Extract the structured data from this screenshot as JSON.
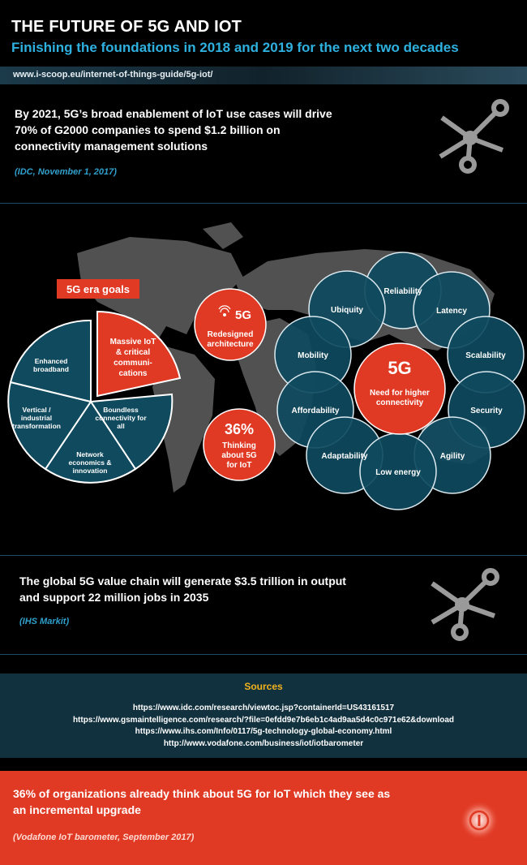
{
  "header": {
    "title": "THE FUTURE OF 5G AND IOT",
    "subtitle": "Finishing the foundations in 2018 and 2019 for the next two decades",
    "url": "www.i-scoop.eu/internet-of-things-guide/5g-iot/"
  },
  "stat_top": {
    "text": "By 2021, 5G’s broad enablement of IoT use cases will drive 70% of G2000 companies to spend $1.2 billion on connectivity management solutions",
    "source": "(IDC, November 1, 2017)"
  },
  "goals": {
    "title": "5G era goals",
    "segments": [
      {
        "label": "Massive IoT\n& critical\ncommuni-\ncations"
      },
      {
        "label": "Boundless\nconnectivity for\nall"
      },
      {
        "label": "Network\neconomics &\ninnovation"
      },
      {
        "label": "Vertical /\nindustrial\ntransformation"
      },
      {
        "label": "Enhanced\nbroadband"
      }
    ]
  },
  "center_circles": {
    "redesign_badge": "5G",
    "redesign": "Redesigned\narchitecture",
    "percent": "36%",
    "percent_text": "Thinking\nabout 5G\nfor IoT"
  },
  "needs": {
    "center_title": "5G",
    "center_text": "Need for higher\nconnectivity",
    "items": [
      "Reliability",
      "Ubiquity",
      "Latency",
      "Mobility",
      "Scalability",
      "Affordability",
      "Security",
      "Adaptability",
      "Agility",
      "Low energy"
    ]
  },
  "stat_mid": {
    "text": "The global 5G value chain will generate $3.5 trillion in output and support 22 million jobs in 2035",
    "source": "(IHS Markit)"
  },
  "sources": {
    "title": "Sources",
    "links": [
      "https://www.idc.com/research/viewtoc.jsp?containerId=US43161517",
      "https://www.gsmaintelligence.com/research/?file=0efdd9e7b6eb1c4ad9aa5d4c0c971e62&download",
      "https://www.ihs.com/Info/0117/5g-technology-global-economy.html",
      "http://www.vodafone.com/business/iot/iotbarometer"
    ]
  },
  "stat_bottom": {
    "text": "36% of organizations already think about 5G for IoT which they see as an incremental upgrade",
    "source": "(Vodafone IoT barometer, September 2017)"
  },
  "colors": {
    "accent_red": "#e03a24",
    "accent_blue": "#2fb1e0",
    "circle_teal": "#0f4a5e",
    "gold": "#f2b31c"
  },
  "icons": [
    "network-nodes-icon",
    "iscoop-logo-icon"
  ]
}
